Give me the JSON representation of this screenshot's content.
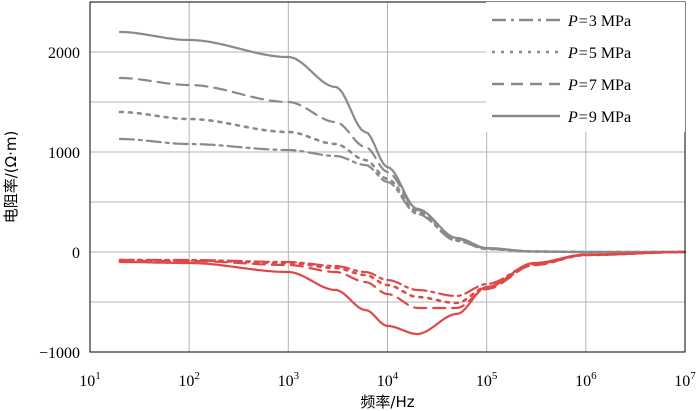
{
  "chart_data": {
    "type": "line",
    "xlabel": "频率/Hz",
    "ylabel": "电阻率/(Ω·m)",
    "xscale": "log",
    "xlim": [
      10,
      10000000
    ],
    "ylim": [
      -1000,
      2500
    ],
    "grid": true,
    "legend_position": "top-right",
    "x_ticks": [
      {
        "value": 10,
        "base": "10",
        "exp": "1"
      },
      {
        "value": 100,
        "base": "10",
        "exp": "2"
      },
      {
        "value": 1000,
        "base": "10",
        "exp": "3"
      },
      {
        "value": 10000,
        "base": "10",
        "exp": "4"
      },
      {
        "value": 100000,
        "base": "10",
        "exp": "5"
      },
      {
        "value": 1000000,
        "base": "10",
        "exp": "6"
      },
      {
        "value": 10000000,
        "base": "10",
        "exp": "7"
      }
    ],
    "y_ticks": [
      {
        "value": -1000,
        "label": "−1000"
      },
      {
        "value": 0,
        "label": "0"
      },
      {
        "value": 1000,
        "label": "1000"
      },
      {
        "value": 2000,
        "label": "2000"
      }
    ],
    "series": [
      {
        "name": "P = 3 MPa",
        "var": "P",
        "eq": "=",
        "val": "3",
        "unit": "MPa",
        "style": "dashdot",
        "real_color": "#8a8a8a",
        "imag_color": "#e04848",
        "x": [
          20,
          100,
          1000,
          3000,
          6000,
          10000,
          20000,
          50000,
          100000,
          300000,
          1000000,
          10000000
        ],
        "real": [
          1130,
          1080,
          1020,
          960,
          870,
          700,
          380,
          110,
          30,
          5,
          0,
          0
        ],
        "imag": [
          -80,
          -80,
          -100,
          -140,
          -200,
          -280,
          -380,
          -440,
          -320,
          -120,
          -30,
          0
        ]
      },
      {
        "name": "P = 5 MPa",
        "var": "P",
        "eq": "=",
        "val": "5",
        "unit": "MPa",
        "style": "dotted",
        "real_color": "#8a8a8a",
        "imag_color": "#e04848",
        "x": [
          20,
          100,
          1000,
          3000,
          6000,
          10000,
          20000,
          50000,
          100000,
          300000,
          1000000,
          10000000
        ],
        "real": [
          1400,
          1330,
          1200,
          1080,
          920,
          730,
          400,
          120,
          30,
          5,
          0,
          0
        ],
        "imag": [
          -80,
          -85,
          -110,
          -160,
          -230,
          -330,
          -450,
          -510,
          -350,
          -130,
          -30,
          0
        ]
      },
      {
        "name": "P = 7 MPa",
        "var": "P",
        "eq": "=",
        "val": "7",
        "unit": "MPa",
        "style": "dashed",
        "real_color": "#8a8a8a",
        "imag_color": "#e04848",
        "x": [
          20,
          100,
          1000,
          3000,
          6000,
          10000,
          20000,
          50000,
          100000,
          300000,
          1000000,
          10000000
        ],
        "real": [
          1740,
          1670,
          1500,
          1300,
          1050,
          800,
          420,
          130,
          35,
          5,
          0,
          0
        ],
        "imag": [
          -90,
          -90,
          -130,
          -200,
          -300,
          -420,
          -560,
          -560,
          -370,
          -130,
          -30,
          0
        ]
      },
      {
        "name": "P = 9 MPa",
        "var": "P",
        "eq": "=",
        "val": "9",
        "unit": "MPa",
        "style": "solid",
        "real_color": "#8a8a8a",
        "imag_color": "#e04848",
        "x": [
          20,
          100,
          1000,
          3000,
          6000,
          10000,
          20000,
          50000,
          100000,
          300000,
          1000000,
          10000000
        ],
        "real": [
          2200,
          2120,
          1950,
          1650,
          1200,
          850,
          430,
          140,
          40,
          5,
          0,
          0
        ],
        "imag": [
          -100,
          -110,
          -200,
          -380,
          -580,
          -740,
          -820,
          -620,
          -350,
          -110,
          -25,
          0
        ]
      }
    ]
  }
}
